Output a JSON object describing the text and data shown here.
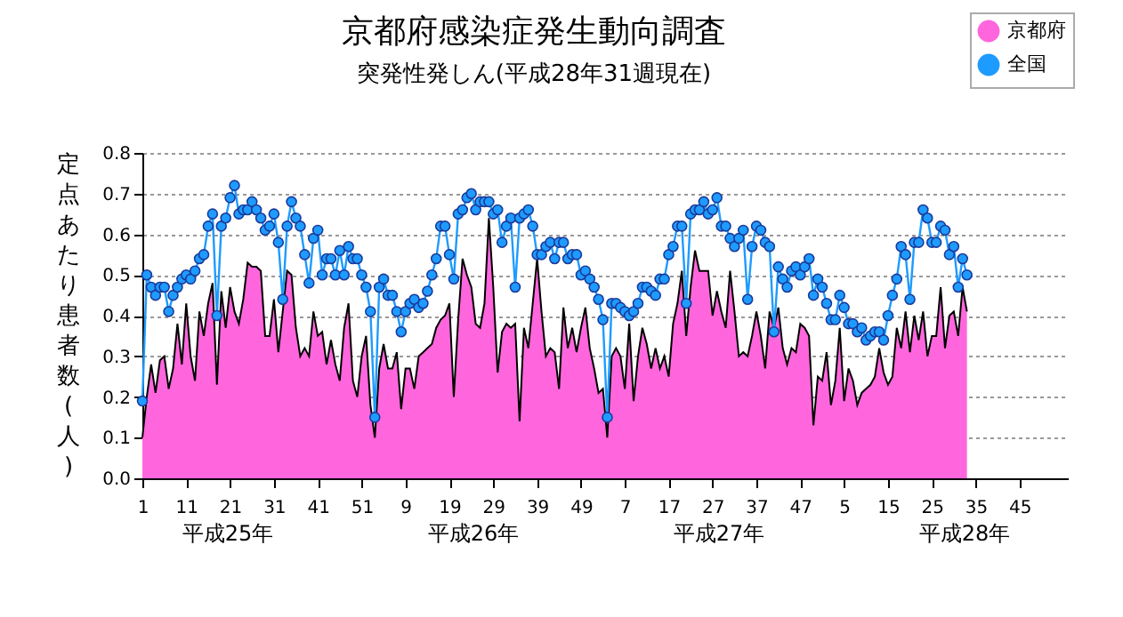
{
  "chart_data": {
    "type": "area",
    "title": "京都府感染症発生動向調査",
    "subtitle": "突発性発しん(平成28年31週現在)",
    "ylabel": "定点あたり患者数(人)",
    "ylim": [
      0,
      0.8
    ],
    "yticks": [
      {
        "value": 0,
        "label": "0.0"
      },
      {
        "value": 0.1,
        "label": "0.1"
      },
      {
        "value": 0.2,
        "label": "0.2"
      },
      {
        "value": 0.3,
        "label": "0.3"
      },
      {
        "value": 0.4,
        "label": "0.4"
      },
      {
        "value": 0.5,
        "label": "0.5"
      },
      {
        "value": 0.6,
        "label": "0.6"
      },
      {
        "value": 0.7,
        "label": "0.7"
      },
      {
        "value": 0.8,
        "label": "0.8"
      }
    ],
    "categories": [
      "1",
      null,
      null,
      null,
      null,
      null,
      null,
      null,
      null,
      null,
      "11",
      null,
      null,
      null,
      null,
      null,
      null,
      null,
      null,
      null,
      "21",
      null,
      null,
      null,
      null,
      null,
      null,
      null,
      null,
      null,
      "31",
      null,
      null,
      null,
      null,
      null,
      null,
      null,
      null,
      null,
      "41",
      null,
      null,
      null,
      null,
      null,
      null,
      null,
      null,
      null,
      "51",
      null,
      null,
      null,
      null,
      null,
      null,
      null,
      null,
      null,
      "9",
      null,
      null,
      null,
      null,
      null,
      null,
      null,
      null,
      null,
      "19",
      null,
      null,
      null,
      null,
      null,
      null,
      null,
      null,
      null,
      "29",
      null,
      null,
      null,
      null,
      null,
      null,
      null,
      null,
      null,
      "39",
      null,
      null,
      null,
      null,
      null,
      null,
      null,
      null,
      null,
      "49",
      null,
      null,
      null,
      null,
      null,
      null,
      null,
      null,
      null,
      "7",
      null,
      null,
      null,
      null,
      null,
      null,
      null,
      null,
      null,
      "17",
      null,
      null,
      null,
      null,
      null,
      null,
      null,
      null,
      null,
      "27",
      null,
      null,
      null,
      null,
      null,
      null,
      null,
      null,
      null,
      "37",
      null,
      null,
      null,
      null,
      null,
      null,
      null,
      null,
      null,
      "47",
      null,
      null,
      null,
      null,
      null,
      null,
      null,
      null,
      null,
      "5",
      null,
      null,
      null,
      null,
      null,
      null,
      null,
      null,
      null,
      "15",
      null,
      null,
      null,
      null,
      null,
      null,
      null,
      null,
      null,
      "25",
      null,
      null,
      null,
      null,
      null,
      null,
      null,
      null,
      null,
      "35",
      null,
      null,
      null,
      null,
      null,
      null,
      null,
      null,
      null,
      "45",
      null,
      null,
      null,
      null,
      null,
      null,
      null,
      null,
      null,
      null,
      null
    ],
    "annotations": [
      "平成25年",
      "平成26年",
      "平成27年",
      "平成28年"
    ],
    "grid": "y",
    "legend": "top right",
    "series": [
      {
        "name": "京都府",
        "color": "#ff66dd",
        "values": [
          0.1,
          0.2,
          0.28,
          0.21,
          0.29,
          0.3,
          0.22,
          0.27,
          0.38,
          0.28,
          0.43,
          0.3,
          0.24,
          0.41,
          0.35,
          0.43,
          0.48,
          0.23,
          0.46,
          0.37,
          0.47,
          0.41,
          0.38,
          0.44,
          0.53,
          0.52,
          0.52,
          0.51,
          0.35,
          0.35,
          0.44,
          0.31,
          0.41,
          0.51,
          0.5,
          0.37,
          0.3,
          0.32,
          0.3,
          0.41,
          0.35,
          0.36,
          0.28,
          0.34,
          0.28,
          0.24,
          0.37,
          0.43,
          0.24,
          0.2,
          0.3,
          0.35,
          0.18,
          0.1,
          0.27,
          0.33,
          0.27,
          0.27,
          0.31,
          0.17,
          0.27,
          0.27,
          0.22,
          0.3,
          0.31,
          0.32,
          0.33,
          0.37,
          0.39,
          0.4,
          0.43,
          0.2,
          0.39,
          0.54,
          0.5,
          0.47,
          0.38,
          0.37,
          0.43,
          0.64,
          0.47,
          0.26,
          0.36,
          0.38,
          0.37,
          0.38,
          0.14,
          0.37,
          0.32,
          0.43,
          0.54,
          0.41,
          0.3,
          0.32,
          0.31,
          0.22,
          0.42,
          0.32,
          0.37,
          0.31,
          0.37,
          0.42,
          0.32,
          0.27,
          0.21,
          0.22,
          0.1,
          0.3,
          0.32,
          0.3,
          0.22,
          0.38,
          0.19,
          0.3,
          0.37,
          0.33,
          0.27,
          0.32,
          0.27,
          0.3,
          0.25,
          0.38,
          0.43,
          0.51,
          0.35,
          0.47,
          0.56,
          0.51,
          0.51,
          0.51,
          0.4,
          0.46,
          0.41,
          0.37,
          0.51,
          0.41,
          0.3,
          0.31,
          0.3,
          0.35,
          0.41,
          0.35,
          0.27,
          0.41,
          0.37,
          0.42,
          0.32,
          0.28,
          0.32,
          0.31,
          0.38,
          0.37,
          0.35,
          0.13,
          0.25,
          0.24,
          0.31,
          0.18,
          0.24,
          0.37,
          0.19,
          0.27,
          0.24,
          0.18,
          0.21,
          0.22,
          0.23,
          0.25,
          0.32,
          0.26,
          0.23,
          0.25,
          0.37,
          0.32,
          0.41,
          0.31,
          0.4,
          0.34,
          0.41,
          0.3,
          0.35,
          0.35,
          0.47,
          0.32,
          0.4,
          0.41,
          0.35,
          0.47,
          0.41,
          null,
          null,
          null,
          null,
          null,
          null,
          null,
          null,
          null,
          null,
          null,
          null,
          null,
          null,
          null,
          null,
          null,
          null,
          null,
          null,
          null,
          null,
          null
        ]
      },
      {
        "name": "全国",
        "type": "line",
        "marker": "circle",
        "color": "#1e9bff",
        "values": [
          0.19,
          0.5,
          0.47,
          0.45,
          0.47,
          0.47,
          0.41,
          0.45,
          0.47,
          0.49,
          0.5,
          0.49,
          0.51,
          0.54,
          0.55,
          0.62,
          0.65,
          0.4,
          0.62,
          0.64,
          0.69,
          0.72,
          0.65,
          0.66,
          0.66,
          0.68,
          0.66,
          0.64,
          0.61,
          0.62,
          0.65,
          0.58,
          0.44,
          0.62,
          0.68,
          0.64,
          0.62,
          0.55,
          0.48,
          0.59,
          0.61,
          0.5,
          0.54,
          0.54,
          0.5,
          0.56,
          0.5,
          0.57,
          0.54,
          0.54,
          0.5,
          0.47,
          0.41,
          0.15,
          0.47,
          0.49,
          0.45,
          0.45,
          0.41,
          0.36,
          0.41,
          0.43,
          0.44,
          0.42,
          0.43,
          0.46,
          0.5,
          0.54,
          0.62,
          0.62,
          0.55,
          0.49,
          0.65,
          0.66,
          0.69,
          0.7,
          0.66,
          0.68,
          0.68,
          0.68,
          0.65,
          0.66,
          0.58,
          0.62,
          0.64,
          0.47,
          0.64,
          0.65,
          0.66,
          0.62,
          0.55,
          0.55,
          0.57,
          0.58,
          0.54,
          0.58,
          0.58,
          0.54,
          0.55,
          0.55,
          0.5,
          0.51,
          0.49,
          0.47,
          0.44,
          0.39,
          0.15,
          0.43,
          0.43,
          0.42,
          0.41,
          0.4,
          0.41,
          0.43,
          0.47,
          0.47,
          0.46,
          0.45,
          0.49,
          0.49,
          0.55,
          0.57,
          0.62,
          0.62,
          0.43,
          0.65,
          0.66,
          0.66,
          0.68,
          0.65,
          0.66,
          0.69,
          0.62,
          0.62,
          0.59,
          0.57,
          0.59,
          0.61,
          0.44,
          0.57,
          0.62,
          0.61,
          0.58,
          0.57,
          0.36,
          0.52,
          0.49,
          0.47,
          0.51,
          0.52,
          0.5,
          0.52,
          0.54,
          0.45,
          0.49,
          0.47,
          0.43,
          0.39,
          0.39,
          0.45,
          0.42,
          0.38,
          0.38,
          0.36,
          0.37,
          0.34,
          0.35,
          0.36,
          0.36,
          0.34,
          0.4,
          0.45,
          0.49,
          0.57,
          0.55,
          0.44,
          0.58,
          0.58,
          0.66,
          0.64,
          0.58,
          0.58,
          0.62,
          0.61,
          0.55,
          0.57,
          0.47,
          0.54,
          0.5,
          null,
          null,
          null,
          null,
          null,
          null,
          null,
          null,
          null,
          null,
          null,
          null,
          null,
          null,
          null,
          null,
          null,
          null,
          null,
          null,
          null,
          null,
          null
        ]
      }
    ]
  }
}
